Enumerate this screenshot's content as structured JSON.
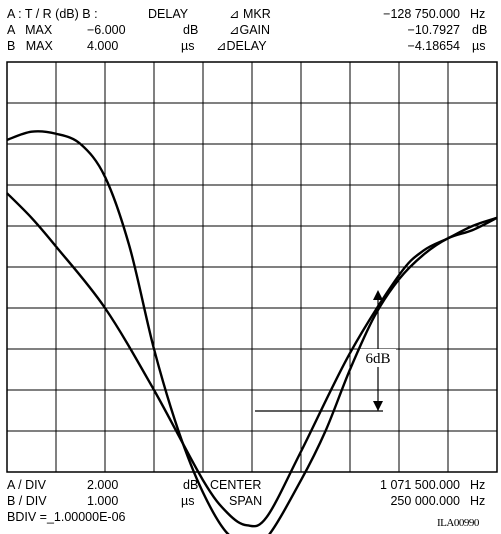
{
  "header": {
    "row1": {
      "title": "A : T / R (dB) B :",
      "b_mode": "DELAY",
      "mkr_label": "⊿ MKR",
      "mkr_value": "−128 750.000",
      "mkr_unit": "Hz"
    },
    "row2": {
      "label": "A   MAX",
      "value": "−6.000",
      "unit": "dB",
      "delta_label": "⊿GAIN",
      "delta_value": "−10.7927",
      "delta_unit": "dB"
    },
    "row3": {
      "label": "B   MAX",
      "value": "4.000",
      "unit": "µs",
      "delta_label": "⊿DELAY",
      "delta_value": "−4.18654",
      "delta_unit": "µs"
    }
  },
  "footer": {
    "row1": {
      "label": "A / DIV",
      "value": "2.000",
      "unit": "dB",
      "param": "CENTER",
      "param_value": "1 071 500.000",
      "param_unit": "Hz"
    },
    "row2": {
      "label": "B / DIV",
      "value": "1.000",
      "unit": "µs",
      "param": "SPAN",
      "param_value": "250 000.000",
      "param_unit": "Hz"
    },
    "row3": {
      "label": "BDIV =_1.00000E-06"
    },
    "figure_id": "ILA00990"
  },
  "chart_data": {
    "type": "line",
    "grid": true,
    "x_divisions": 10,
    "y_divisions": 10,
    "annotation": {
      "text": "6dB"
    },
    "series": [
      {
        "x": [
          0,
          0.5,
          1,
          1.5,
          2,
          2.5,
          3,
          3.5,
          4,
          4.5,
          4.9,
          5.3,
          6,
          6.5,
          7,
          7.5,
          8,
          8.5,
          9,
          9.5,
          10
        ],
        "values": [
          3.1,
          3.3,
          3.25,
          3.0,
          2.2,
          0.5,
          -2.0,
          -4.0,
          -5.5,
          -6.5,
          -6.65,
          -6.6,
          -5.2,
          -4.0,
          -2.5,
          -1.2,
          -0.3,
          0.3,
          0.7,
          0.9,
          1.2
        ]
      },
      {
        "x": [
          0,
          0.5,
          1,
          2,
          3,
          4,
          4.5,
          4.9,
          5.3,
          6,
          7,
          8,
          8.5,
          9,
          9.5,
          10
        ],
        "values": [
          1.8,
          1.2,
          0.5,
          -1.0,
          -3.0,
          -5.2,
          -6.0,
          -6.3,
          -6.1,
          -4.5,
          -2.1,
          -0.2,
          0.4,
          0.7,
          1.0,
          1.2
        ]
      }
    ]
  }
}
